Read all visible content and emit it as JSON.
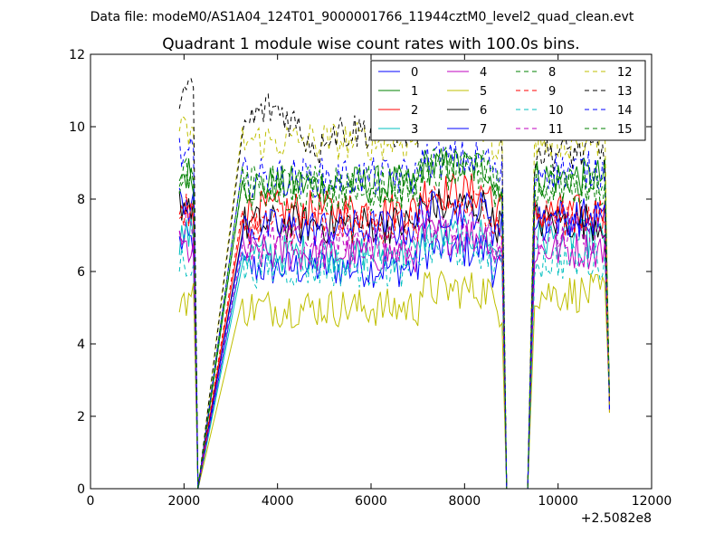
{
  "header": {
    "data_file": "Data file: modeM0/AS1A04_124T01_9000001766_11944cztM0_level2_quad_clean.evt"
  },
  "chart_data": {
    "type": "line",
    "title": "Quadrant 1 module wise count rates with 100.0s bins.",
    "xlabel": "",
    "ylabel": "",
    "x_offset_label": "+2.5082e8",
    "xlim": [
      0,
      12000
    ],
    "ylim": [
      0,
      12
    ],
    "xticks": [
      0,
      2000,
      4000,
      6000,
      8000,
      10000,
      12000
    ],
    "yticks": [
      0,
      2,
      4,
      6,
      8,
      10,
      12
    ],
    "xtick_labels": [
      "0",
      "2000",
      "4000",
      "6000",
      "8000",
      "10000",
      "12000"
    ],
    "ytick_labels": [
      "0",
      "2",
      "4",
      "6",
      "8",
      "10",
      "12"
    ],
    "grid": false,
    "legend_position": "top-right",
    "segments": [
      {
        "start": 1900,
        "end": 2200
      },
      {
        "start": 3250,
        "end": 8800
      },
      {
        "start": 9500,
        "end": 11000
      }
    ],
    "gaps": [
      {
        "start": 2300,
        "end": 2400
      },
      {
        "start": 8900,
        "end": 9400
      }
    ],
    "bin_size": 100,
    "series": [
      {
        "name": "0",
        "color": "#0000ff",
        "style": "solid",
        "mean": [
          6.8,
          6.1,
          7.4
        ]
      },
      {
        "name": "1",
        "color": "#008000",
        "style": "solid",
        "mean": [
          8.7,
          8.4,
          8.6
        ]
      },
      {
        "name": "2",
        "color": "#ff0000",
        "style": "solid",
        "mean": [
          7.6,
          7.7,
          7.6
        ]
      },
      {
        "name": "3",
        "color": "#00bfbf",
        "style": "solid",
        "mean": [
          7.0,
          6.5,
          6.9
        ]
      },
      {
        "name": "4",
        "color": "#bf00bf",
        "style": "solid",
        "mean": [
          6.6,
          6.5,
          6.6
        ]
      },
      {
        "name": "5",
        "color": "#bfbf00",
        "style": "solid",
        "mean": [
          5.3,
          5.0,
          5.4
        ]
      },
      {
        "name": "6",
        "color": "#000000",
        "style": "solid",
        "mean": [
          7.9,
          7.3,
          7.4
        ]
      },
      {
        "name": "7",
        "color": "#0000ff",
        "style": "solid",
        "mean": [
          7.8,
          7.2,
          7.5
        ]
      },
      {
        "name": "8",
        "color": "#008000",
        "style": "dashed",
        "mean": [
          8.5,
          8.2,
          8.3
        ]
      },
      {
        "name": "9",
        "color": "#ff0000",
        "style": "dashed",
        "mean": [
          7.6,
          7.3,
          7.5
        ]
      },
      {
        "name": "10",
        "color": "#00bfbf",
        "style": "dashed",
        "mean": [
          6.3,
          6.1,
          6.3
        ]
      },
      {
        "name": "11",
        "color": "#bf00bf",
        "style": "dashed",
        "mean": [
          7.3,
          6.8,
          7.0
        ]
      },
      {
        "name": "12",
        "color": "#bfbf00",
        "style": "dashed",
        "mean": [
          9.8,
          9.6,
          9.6
        ]
      },
      {
        "name": "13",
        "color": "#000000",
        "style": "dashed",
        "mean": [
          10.9,
          9.9,
          9.3
        ]
      },
      {
        "name": "14",
        "color": "#0000ff",
        "style": "dashed",
        "mean": [
          9.2,
          8.6,
          8.8
        ]
      },
      {
        "name": "15",
        "color": "#008000",
        "style": "dashed",
        "mean": [
          8.8,
          8.4,
          8.4
        ]
      }
    ]
  }
}
